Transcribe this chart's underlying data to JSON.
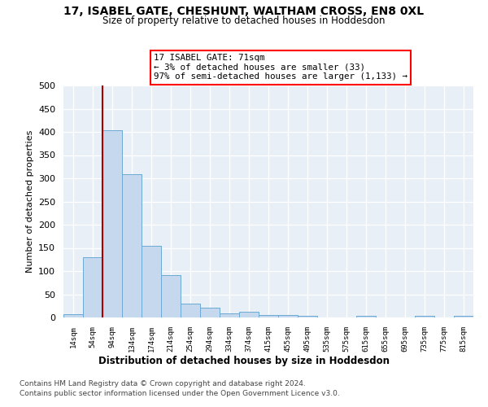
{
  "title": "17, ISABEL GATE, CHESHUNT, WALTHAM CROSS, EN8 0XL",
  "subtitle": "Size of property relative to detached houses in Hoddesdon",
  "xlabel": "Distribution of detached houses by size in Hoddesdon",
  "ylabel": "Number of detached properties",
  "bar_color": "#c5d8ed",
  "bar_edge_color": "#6aaad4",
  "bar_labels": [
    "14sqm",
    "54sqm",
    "94sqm",
    "134sqm",
    "174sqm",
    "214sqm",
    "254sqm",
    "294sqm",
    "334sqm",
    "374sqm",
    "415sqm",
    "455sqm",
    "495sqm",
    "535sqm",
    "575sqm",
    "615sqm",
    "655sqm",
    "695sqm",
    "735sqm",
    "775sqm",
    "815sqm"
  ],
  "bar_values": [
    7,
    130,
    403,
    308,
    155,
    92,
    30,
    21,
    8,
    12,
    5,
    6,
    3,
    0,
    0,
    3,
    0,
    0,
    3,
    0,
    3
  ],
  "ylim": [
    0,
    500
  ],
  "yticks": [
    0,
    50,
    100,
    150,
    200,
    250,
    300,
    350,
    400,
    450,
    500
  ],
  "vline_x": 1.5,
  "vline_color": "#aa0000",
  "annotation_line1": "17 ISABEL GATE: 71sqm",
  "annotation_line2": "← 3% of detached houses are smaller (33)",
  "annotation_line3": "97% of semi-detached houses are larger (1,133) →",
  "annotation_box_facecolor": "white",
  "annotation_box_edgecolor": "red",
  "background_color": "#e8eff7",
  "footer_line1": "Contains HM Land Registry data © Crown copyright and database right 2024.",
  "footer_line2": "Contains public sector information licensed under the Open Government Licence v3.0."
}
